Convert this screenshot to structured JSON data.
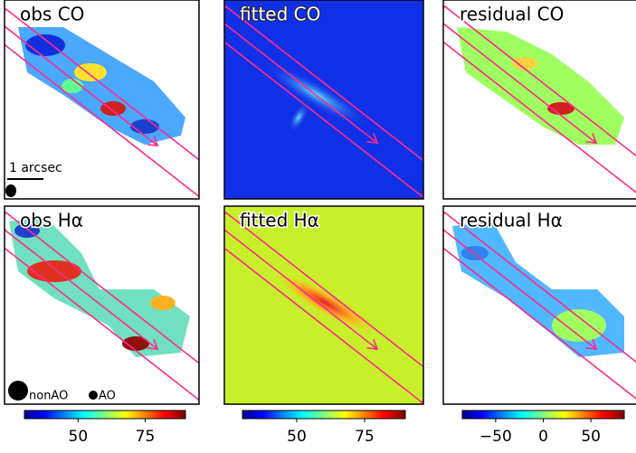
{
  "panels": [
    {
      "title": "obs CO"
    },
    {
      "title": "fitted CO"
    },
    {
      "title": "residual CO"
    },
    {
      "title": "obs Hα"
    },
    {
      "title": "fitted Hα"
    },
    {
      "title": "residual Hα"
    }
  ],
  "scale_bar": "1 arcsec",
  "beam_labels": [
    "nonAO",
    "AO"
  ],
  "colorbars": [
    {
      "lim": [
        30,
        90
      ],
      "ticks": [
        50,
        75
      ]
    },
    {
      "lim": [
        30,
        90
      ],
      "ticks": [
        50,
        75
      ]
    },
    {
      "lim": [
        -85,
        85
      ],
      "ticks": [
        {
          "value": -50,
          "label": "−50"
        },
        0,
        50
      ]
    }
  ]
}
